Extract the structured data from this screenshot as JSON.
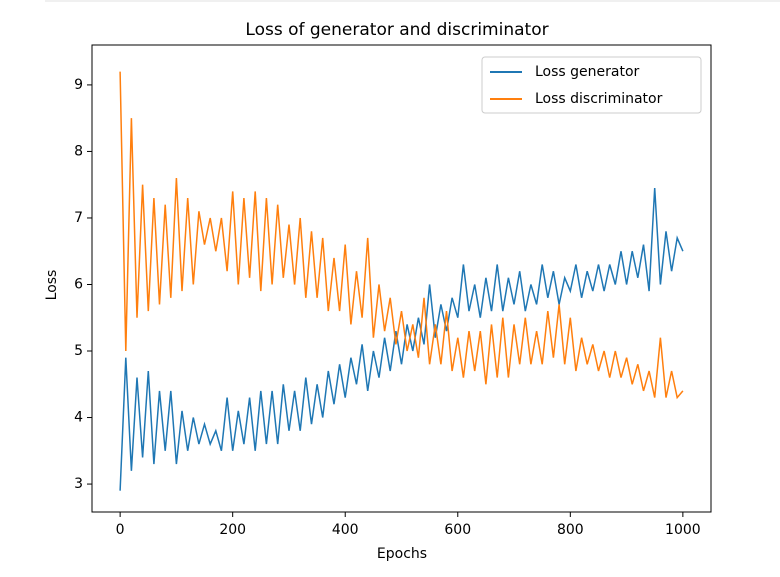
{
  "chart_data": {
    "type": "line",
    "title": "Loss of generator and discriminator",
    "x_label": "Epochs",
    "y_label": "Loss",
    "x": [
      0,
      10,
      20,
      30,
      40,
      50,
      60,
      70,
      80,
      90,
      100,
      110,
      120,
      130,
      140,
      150,
      160,
      170,
      180,
      190,
      200,
      210,
      220,
      230,
      240,
      250,
      260,
      270,
      280,
      290,
      300,
      310,
      320,
      330,
      340,
      350,
      360,
      370,
      380,
      390,
      400,
      410,
      420,
      430,
      440,
      450,
      460,
      470,
      480,
      490,
      500,
      510,
      520,
      530,
      540,
      550,
      560,
      570,
      580,
      590,
      600,
      610,
      620,
      630,
      640,
      650,
      660,
      670,
      680,
      690,
      700,
      710,
      720,
      730,
      740,
      750,
      760,
      770,
      780,
      790,
      800,
      810,
      820,
      830,
      840,
      850,
      860,
      870,
      880,
      890,
      900,
      910,
      920,
      930,
      940,
      950,
      960,
      970,
      980,
      990,
      1000
    ],
    "series": [
      {
        "name": "Loss generator",
        "color": "#1f77b4",
        "values": [
          2.9,
          4.9,
          3.2,
          4.6,
          3.4,
          4.7,
          3.3,
          4.4,
          3.5,
          4.4,
          3.3,
          4.1,
          3.5,
          4.0,
          3.6,
          3.9,
          3.6,
          3.8,
          3.5,
          4.3,
          3.5,
          4.1,
          3.6,
          4.3,
          3.5,
          4.4,
          3.6,
          4.4,
          3.6,
          4.5,
          3.8,
          4.4,
          3.8,
          4.6,
          3.9,
          4.5,
          4.0,
          4.7,
          4.2,
          4.8,
          4.3,
          4.9,
          4.5,
          5.1,
          4.4,
          5.0,
          4.6,
          5.2,
          4.7,
          5.3,
          4.8,
          5.4,
          5.0,
          5.5,
          5.1,
          6.0,
          5.2,
          5.7,
          5.3,
          5.8,
          5.5,
          6.3,
          5.6,
          6.0,
          5.5,
          6.1,
          5.6,
          6.3,
          5.6,
          6.1,
          5.7,
          6.2,
          5.6,
          6.0,
          5.7,
          6.3,
          5.8,
          6.2,
          5.7,
          6.1,
          5.9,
          6.3,
          5.8,
          6.2,
          5.9,
          6.3,
          5.9,
          6.3,
          6.0,
          6.5,
          6.0,
          6.5,
          6.1,
          6.6,
          5.9,
          7.45,
          6.0,
          6.8,
          6.2,
          6.7,
          6.5
        ]
      },
      {
        "name": "Loss discriminator",
        "color": "#ff7f0e",
        "values": [
          9.2,
          5.0,
          8.5,
          5.5,
          7.5,
          5.6,
          7.3,
          5.7,
          7.2,
          5.8,
          7.6,
          5.9,
          7.3,
          6.0,
          7.1,
          6.6,
          7.0,
          6.5,
          7.0,
          6.2,
          7.4,
          6.0,
          7.3,
          6.1,
          7.4,
          5.9,
          7.3,
          6.0,
          7.2,
          6.1,
          6.9,
          6.0,
          7.0,
          5.8,
          6.8,
          5.8,
          6.7,
          5.6,
          6.4,
          5.6,
          6.6,
          5.4,
          6.2,
          5.5,
          6.7,
          5.2,
          6.0,
          5.3,
          5.8,
          5.1,
          5.6,
          5.0,
          5.4,
          4.9,
          5.8,
          4.8,
          5.4,
          4.8,
          5.6,
          4.7,
          5.2,
          4.6,
          5.3,
          4.7,
          5.3,
          4.5,
          5.4,
          4.6,
          5.5,
          4.6,
          5.4,
          4.8,
          5.5,
          4.8,
          5.3,
          4.8,
          5.6,
          4.9,
          5.7,
          4.8,
          5.5,
          4.7,
          5.2,
          4.8,
          5.1,
          4.7,
          5.0,
          4.6,
          5.0,
          4.6,
          4.9,
          4.5,
          4.8,
          4.4,
          4.7,
          4.3,
          5.2,
          4.3,
          4.7,
          4.3,
          4.4
        ]
      }
    ],
    "xlim": [
      -50,
      1050
    ],
    "ylim": [
      2.58,
      9.6
    ],
    "xticks": [
      0,
      200,
      400,
      600,
      800,
      1000
    ],
    "yticks": [
      3,
      4,
      5,
      6,
      7,
      8,
      9
    ],
    "legend": "upper right"
  }
}
